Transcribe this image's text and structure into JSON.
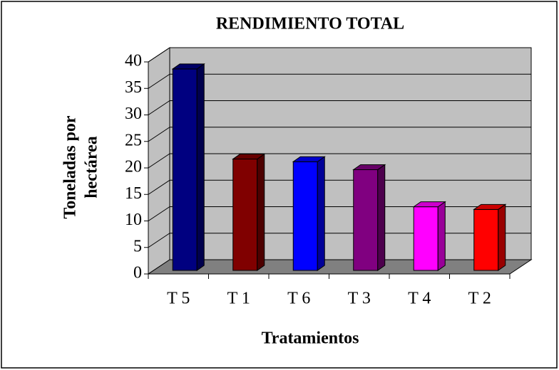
{
  "chart_data": {
    "type": "bar3d",
    "title": "RENDIMIENTO TOTAL",
    "xlabel": "Tratamientos",
    "ylabel": [
      "Toneladas por",
      "hectárea"
    ],
    "categories": [
      "T 5",
      "T 1",
      "T 6",
      "T 3",
      "T 4",
      "T 2"
    ],
    "values": [
      38,
      21,
      20.5,
      19,
      12,
      11.5
    ],
    "colors": [
      "#000080",
      "#800000",
      "#0000ff",
      "#800080",
      "#ff00ff",
      "#ff0000"
    ],
    "ylim": [
      0,
      40
    ],
    "yticks": [
      0,
      5,
      10,
      15,
      20,
      25,
      30,
      35,
      40
    ],
    "grid": true
  }
}
